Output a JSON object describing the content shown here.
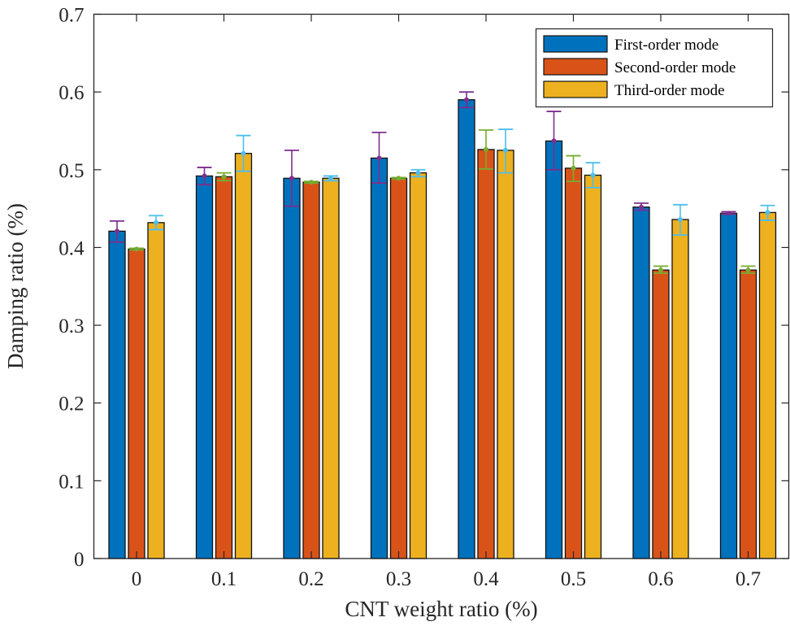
{
  "chart_data": {
    "type": "bar",
    "title": "",
    "xlabel": "CNT weight ratio (%)",
    "ylabel": "Damping ratio (%)",
    "ylim": [
      0,
      0.7
    ],
    "yticks": [
      "0",
      "0.1",
      "0.2",
      "0.3",
      "0.4",
      "0.5",
      "0.6",
      "0.7"
    ],
    "ytick_values": [
      0,
      0.1,
      0.2,
      0.3,
      0.4,
      0.5,
      0.6,
      0.7
    ],
    "categories": [
      "0",
      "0.1",
      "0.2",
      "0.3",
      "0.4",
      "0.5",
      "0.6",
      "0.7"
    ],
    "grid": false,
    "legend_position": "top-right",
    "series": [
      {
        "name": "First-order mode",
        "color": "#0072BD",
        "error_color": "#7E2F8E",
        "values": [
          0.421,
          0.492,
          0.489,
          0.515,
          0.59,
          0.537,
          0.452,
          0.444
        ],
        "err_low": [
          0.407,
          0.481,
          0.453,
          0.483,
          0.58,
          0.5,
          0.448,
          0.443
        ],
        "err_high": [
          0.434,
          0.503,
          0.525,
          0.548,
          0.6,
          0.575,
          0.457,
          0.446
        ]
      },
      {
        "name": "Second-order mode",
        "color": "#D95319",
        "error_color": "#77AC30",
        "values": [
          0.398,
          0.491,
          0.484,
          0.489,
          0.526,
          0.502,
          0.371,
          0.371
        ],
        "err_low": [
          0.397,
          0.486,
          0.483,
          0.488,
          0.501,
          0.485,
          0.367,
          0.367
        ],
        "err_high": [
          0.399,
          0.496,
          0.485,
          0.49,
          0.551,
          0.518,
          0.376,
          0.376
        ]
      },
      {
        "name": "Third-order mode",
        "color": "#EDB120",
        "error_color": "#4DBEEE",
        "values": [
          0.432,
          0.521,
          0.489,
          0.496,
          0.525,
          0.493,
          0.436,
          0.445
        ],
        "err_low": [
          0.423,
          0.498,
          0.486,
          0.491,
          0.496,
          0.477,
          0.416,
          0.435
        ],
        "err_high": [
          0.441,
          0.544,
          0.492,
          0.5,
          0.552,
          0.509,
          0.455,
          0.454
        ]
      }
    ]
  }
}
